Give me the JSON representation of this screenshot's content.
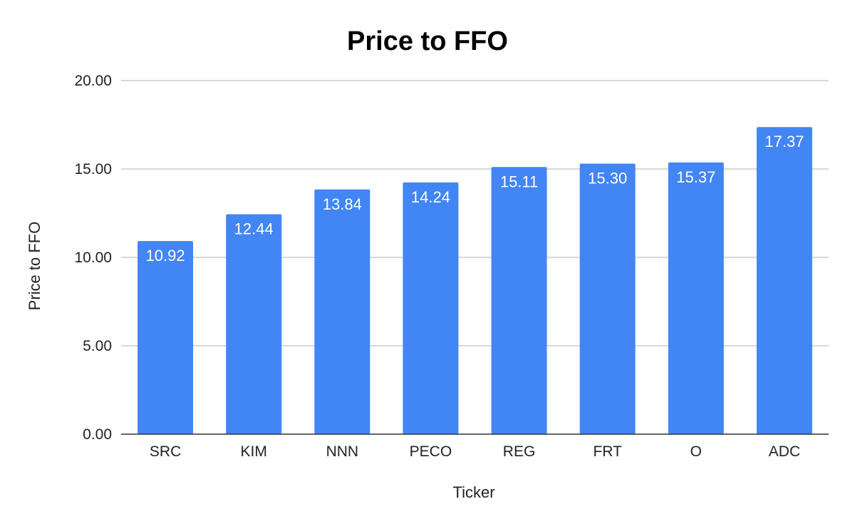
{
  "chart_data": {
    "type": "bar",
    "title": "Price to FFO",
    "xlabel": "Ticker",
    "ylabel": "Price to FFO",
    "categories": [
      "SRC",
      "KIM",
      "NNN",
      "PECO",
      "REG",
      "FRT",
      "O",
      "ADC"
    ],
    "values": [
      10.92,
      12.44,
      13.84,
      14.24,
      15.11,
      15.3,
      15.37,
      17.37
    ],
    "data_labels": [
      "10.92",
      "12.44",
      "13.84",
      "14.24",
      "15.11",
      "15.30",
      "15.37",
      "17.37"
    ],
    "ylim": [
      0,
      20
    ],
    "yticks": [
      0,
      5,
      10,
      15,
      20
    ],
    "ytick_labels": [
      "0.00",
      "5.00",
      "10.00",
      "15.00",
      "20.00"
    ],
    "grid": true,
    "legend": "none",
    "bar_color": "#4285f4"
  }
}
